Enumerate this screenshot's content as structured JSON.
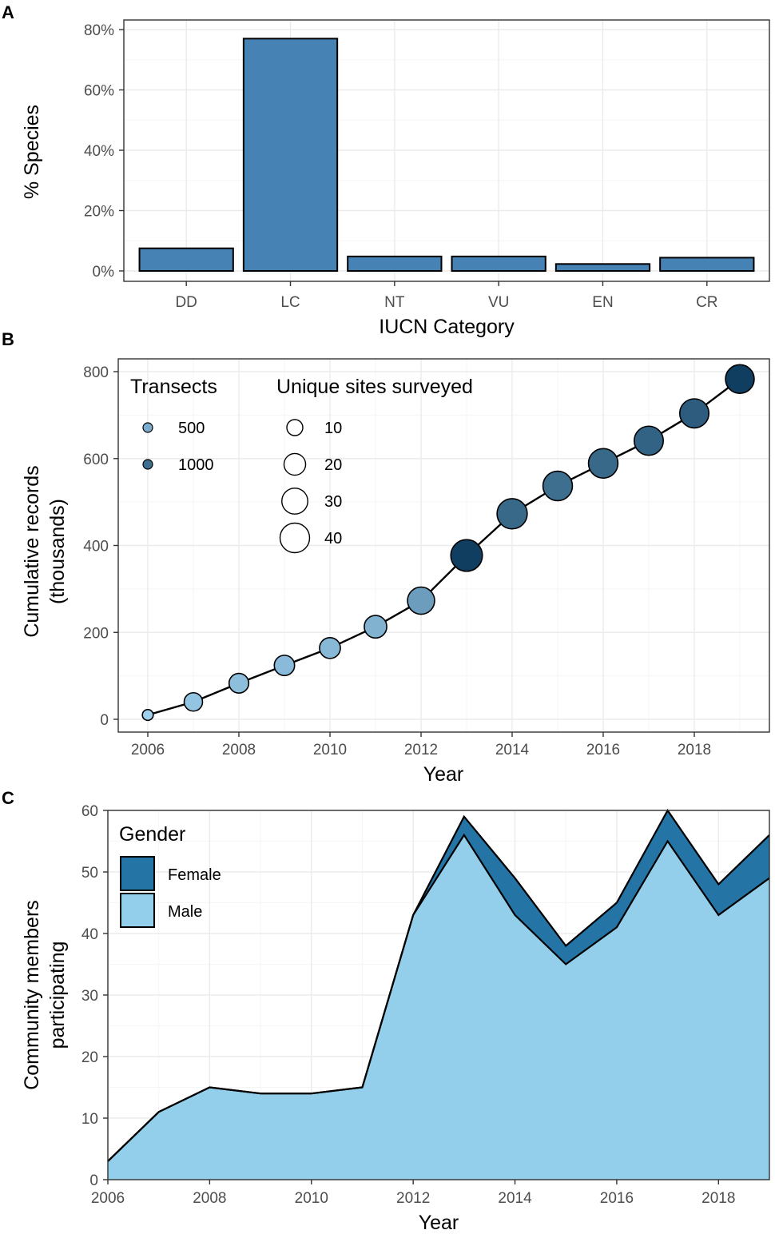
{
  "chart_data": [
    {
      "id": "A",
      "panel_label": "A",
      "type": "bar",
      "categories": [
        "DD",
        "LC",
        "NT",
        "VU",
        "EN",
        "CR"
      ],
      "values": [
        7.5,
        77,
        4.8,
        4.8,
        2.3,
        4.4
      ],
      "xlabel": "IUCN Category",
      "ylabel": "% Species",
      "ylim": [
        0,
        80
      ],
      "yticks": [
        0,
        20,
        40,
        60,
        80
      ],
      "ytick_labels": [
        "0%",
        "20%",
        "40%",
        "60%",
        "80%"
      ],
      "bar_color": "#4682b4",
      "grid": true
    },
    {
      "id": "B",
      "panel_label": "B",
      "type": "scatter",
      "x": [
        2006,
        2007,
        2008,
        2009,
        2010,
        2011,
        2012,
        2013,
        2014,
        2015,
        2016,
        2017,
        2018,
        2019
      ],
      "y": [
        10,
        40,
        83,
        124,
        164,
        213,
        273,
        377,
        473,
        537,
        589,
        641,
        704,
        783
      ],
      "transects": [
        200,
        300,
        350,
        380,
        400,
        450,
        620,
        1400,
        1050,
        1000,
        1050,
        1100,
        1150,
        1400
      ],
      "unique_sites": [
        2,
        10,
        12,
        13,
        14,
        17,
        27,
        39,
        35,
        33,
        33,
        32,
        32,
        31
      ],
      "connect_line": true,
      "xlabel": "Year",
      "ylabel_lines": [
        "Cumulative records",
        "(thousands)"
      ],
      "xlim": [
        2005.3,
        2019.7
      ],
      "ylim": [
        -30,
        815
      ],
      "xticks": [
        2006,
        2008,
        2010,
        2012,
        2014,
        2016,
        2018
      ],
      "yticks": [
        0,
        200,
        400,
        600,
        800
      ],
      "legend": {
        "color_title": "Transects",
        "color_entries": [
          {
            "label": "500",
            "value": 500
          },
          {
            "label": "1000",
            "value": 1000
          }
        ],
        "size_title": "Unique sites surveyed",
        "size_entries": [
          {
            "label": "10",
            "value": 10
          },
          {
            "label": "20",
            "value": 20
          },
          {
            "label": "30",
            "value": 30
          },
          {
            "label": "40",
            "value": 40
          }
        ],
        "position": "top-left"
      },
      "color_low": "#9fd0ee",
      "color_high": "#0f3e60"
    },
    {
      "id": "C",
      "panel_label": "C",
      "type": "area",
      "x": [
        2006,
        2007,
        2008,
        2009,
        2010,
        2011,
        2012,
        2013,
        2014,
        2015,
        2016,
        2017,
        2018,
        2019
      ],
      "series": [
        {
          "name": "Male",
          "values": [
            3,
            11,
            15,
            14,
            14,
            15,
            43,
            56,
            43,
            35,
            41,
            55,
            43,
            49
          ],
          "color": "#93cfeb"
        },
        {
          "name": "Female",
          "values": [
            0,
            0,
            0,
            0,
            0,
            0,
            0,
            3,
            6,
            3,
            4,
            5,
            5,
            7
          ],
          "color": "#2475a6"
        }
      ],
      "stacked": true,
      "xlabel": "Year",
      "ylabel_lines": [
        "Community members",
        "participating"
      ],
      "xlim": [
        2006,
        2019
      ],
      "ylim": [
        0,
        60
      ],
      "xticks": [
        2006,
        2008,
        2010,
        2012,
        2014,
        2016,
        2018
      ],
      "yticks": [
        0,
        10,
        20,
        30,
        40,
        50,
        60
      ],
      "legend": {
        "title": "Gender",
        "entries": [
          {
            "label": "Female",
            "color": "#2475a6"
          },
          {
            "label": "Male",
            "color": "#93cfeb"
          }
        ],
        "position": "top-left"
      }
    }
  ]
}
